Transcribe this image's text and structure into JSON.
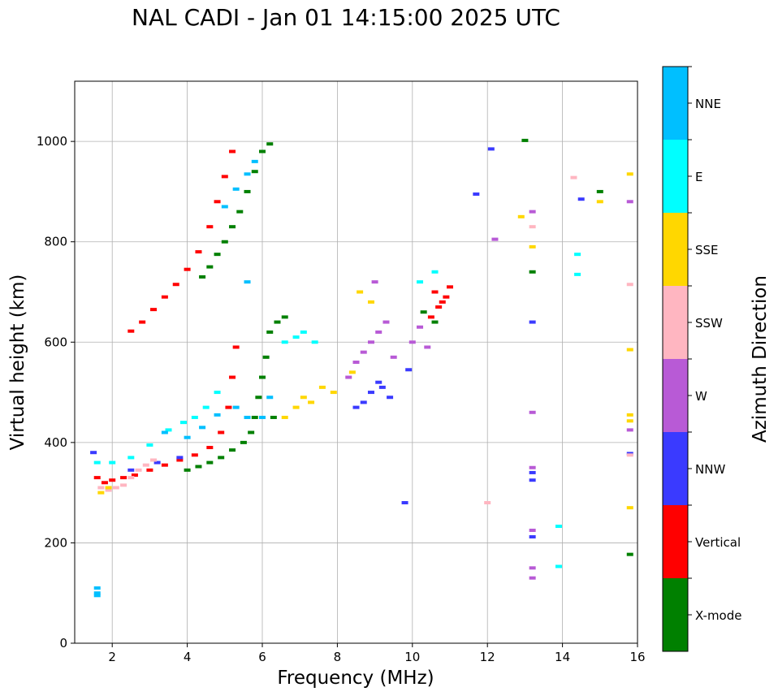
{
  "chart_data": {
    "type": "scatter",
    "title": "NAL CADI - Jan 01 14:15:00 2025 UTC",
    "xlabel": "Frequency (MHz)",
    "ylabel": "Virtual height (km)",
    "xlim": [
      1,
      16
    ],
    "ylim": [
      0,
      1120
    ],
    "xticks": [
      2,
      4,
      6,
      8,
      10,
      12,
      14,
      16
    ],
    "yticks": [
      0,
      200,
      400,
      600,
      800,
      1000
    ],
    "grid": true,
    "colorbar": {
      "label": "Azimuth Direction",
      "categories": [
        {
          "name": "X-mode",
          "color": "#008000"
        },
        {
          "name": "Vertical",
          "color": "#ff0000"
        },
        {
          "name": "NNW",
          "color": "#3a3aff"
        },
        {
          "name": "W",
          "color": "#b85ad6"
        },
        {
          "name": "SSW",
          "color": "#ffb6c1"
        },
        {
          "name": "SSE",
          "color": "#ffd700"
        },
        {
          "name": "E",
          "color": "#00ffff"
        },
        {
          "name": "NNE",
          "color": "#00bfff"
        }
      ]
    },
    "traces": [
      {
        "name": "Vertical",
        "color": "#ff0000",
        "points": [
          [
            1.6,
            330
          ],
          [
            1.8,
            320
          ],
          [
            2.0,
            325
          ],
          [
            2.3,
            330
          ],
          [
            2.6,
            335
          ],
          [
            3.0,
            345
          ],
          [
            3.4,
            355
          ],
          [
            3.8,
            365
          ],
          [
            4.2,
            375
          ],
          [
            4.6,
            390
          ],
          [
            4.9,
            420
          ],
          [
            5.1,
            470
          ],
          [
            5.2,
            530
          ],
          [
            5.3,
            590
          ],
          [
            2.5,
            622
          ],
          [
            2.8,
            640
          ],
          [
            3.1,
            665
          ],
          [
            3.4,
            690
          ],
          [
            3.7,
            715
          ],
          [
            4.0,
            745
          ],
          [
            4.3,
            780
          ],
          [
            4.6,
            830
          ],
          [
            4.8,
            880
          ],
          [
            5.0,
            930
          ],
          [
            5.2,
            980
          ],
          [
            10.5,
            650
          ],
          [
            10.7,
            670
          ],
          [
            10.9,
            690
          ],
          [
            11.0,
            710
          ],
          [
            10.6,
            700
          ],
          [
            10.8,
            680
          ]
        ]
      },
      {
        "name": "X-mode",
        "color": "#008000",
        "points": [
          [
            4.0,
            345
          ],
          [
            4.3,
            352
          ],
          [
            4.6,
            360
          ],
          [
            4.9,
            370
          ],
          [
            5.2,
            385
          ],
          [
            5.5,
            400
          ],
          [
            5.7,
            420
          ],
          [
            5.8,
            450
          ],
          [
            5.9,
            490
          ],
          [
            6.0,
            530
          ],
          [
            6.1,
            570
          ],
          [
            6.2,
            620
          ],
          [
            6.4,
            640
          ],
          [
            6.6,
            650
          ],
          [
            4.4,
            730
          ],
          [
            4.6,
            750
          ],
          [
            4.8,
            775
          ],
          [
            5.0,
            800
          ],
          [
            5.2,
            830
          ],
          [
            5.4,
            860
          ],
          [
            5.6,
            900
          ],
          [
            5.8,
            940
          ],
          [
            6.0,
            980
          ],
          [
            6.2,
            995
          ],
          [
            6.3,
            450
          ],
          [
            10.3,
            660
          ],
          [
            10.6,
            640
          ],
          [
            13.0,
            1002
          ],
          [
            13.2,
            740
          ],
          [
            15.0,
            900
          ],
          [
            15.8,
            177
          ]
        ]
      },
      {
        "name": "NNW",
        "color": "#3a3aff",
        "points": [
          [
            1.5,
            380
          ],
          [
            2.5,
            345
          ],
          [
            3.2,
            360
          ],
          [
            3.8,
            370
          ],
          [
            8.5,
            470
          ],
          [
            8.7,
            480
          ],
          [
            8.9,
            500
          ],
          [
            9.1,
            520
          ],
          [
            9.4,
            490
          ],
          [
            9.2,
            510
          ],
          [
            9.9,
            545
          ],
          [
            9.8,
            280
          ],
          [
            11.7,
            895
          ],
          [
            12.1,
            985
          ],
          [
            13.2,
            640
          ],
          [
            13.2,
            325
          ],
          [
            13.2,
            340
          ],
          [
            13.2,
            212
          ],
          [
            14.5,
            885
          ],
          [
            15.8,
            378
          ]
        ]
      },
      {
        "name": "W",
        "color": "#b85ad6",
        "points": [
          [
            8.3,
            530
          ],
          [
            8.5,
            560
          ],
          [
            8.7,
            580
          ],
          [
            8.9,
            600
          ],
          [
            9.1,
            620
          ],
          [
            9.3,
            640
          ],
          [
            9.0,
            720
          ],
          [
            9.5,
            570
          ],
          [
            10.0,
            600
          ],
          [
            10.2,
            630
          ],
          [
            10.4,
            590
          ],
          [
            12.2,
            805
          ],
          [
            13.2,
            860
          ],
          [
            13.2,
            460
          ],
          [
            13.2,
            225
          ],
          [
            13.2,
            150
          ],
          [
            13.2,
            130
          ],
          [
            13.2,
            350
          ],
          [
            15.8,
            880
          ],
          [
            15.8,
            425
          ]
        ]
      },
      {
        "name": "SSW",
        "color": "#ffb6c1",
        "points": [
          [
            1.7,
            310
          ],
          [
            1.9,
            305
          ],
          [
            2.1,
            310
          ],
          [
            2.3,
            315
          ],
          [
            2.5,
            330
          ],
          [
            2.7,
            345
          ],
          [
            2.9,
            355
          ],
          [
            3.1,
            365
          ],
          [
            12.0,
            280
          ],
          [
            14.3,
            928
          ],
          [
            15.8,
            715
          ],
          [
            15.8,
            375
          ],
          [
            13.2,
            830
          ]
        ]
      },
      {
        "name": "SSE",
        "color": "#ffd700",
        "points": [
          [
            1.7,
            300
          ],
          [
            1.9,
            310
          ],
          [
            6.6,
            450
          ],
          [
            6.9,
            470
          ],
          [
            7.1,
            490
          ],
          [
            7.3,
            480
          ],
          [
            7.6,
            510
          ],
          [
            7.9,
            500
          ],
          [
            8.4,
            540
          ],
          [
            8.6,
            700
          ],
          [
            8.9,
            680
          ],
          [
            12.9,
            850
          ],
          [
            13.2,
            790
          ],
          [
            15.0,
            880
          ],
          [
            15.8,
            935
          ],
          [
            15.8,
            585
          ],
          [
            15.8,
            455
          ],
          [
            15.8,
            443
          ],
          [
            15.8,
            270
          ]
        ]
      },
      {
        "name": "E",
        "color": "#00ffff",
        "points": [
          [
            1.6,
            360
          ],
          [
            2.0,
            360
          ],
          [
            2.5,
            370
          ],
          [
            3.0,
            395
          ],
          [
            3.5,
            425
          ],
          [
            3.9,
            440
          ],
          [
            4.2,
            450
          ],
          [
            4.5,
            470
          ],
          [
            4.8,
            500
          ],
          [
            6.6,
            600
          ],
          [
            6.9,
            610
          ],
          [
            7.1,
            620
          ],
          [
            7.4,
            600
          ],
          [
            10.2,
            720
          ],
          [
            10.6,
            740
          ],
          [
            14.4,
            775
          ],
          [
            14.4,
            735
          ],
          [
            13.9,
            233
          ],
          [
            13.9,
            153
          ]
        ]
      },
      {
        "name": "NNE",
        "color": "#00bfff",
        "points": [
          [
            1.6,
            100
          ],
          [
            1.6,
            110
          ],
          [
            1.6,
            95
          ],
          [
            3.4,
            420
          ],
          [
            4.0,
            410
          ],
          [
            4.4,
            430
          ],
          [
            4.8,
            455
          ],
          [
            5.3,
            470
          ],
          [
            5.6,
            450
          ],
          [
            6.0,
            450
          ],
          [
            5.0,
            870
          ],
          [
            5.3,
            905
          ],
          [
            5.6,
            935
          ],
          [
            5.8,
            960
          ],
          [
            5.6,
            720
          ],
          [
            6.2,
            490
          ]
        ]
      }
    ]
  }
}
